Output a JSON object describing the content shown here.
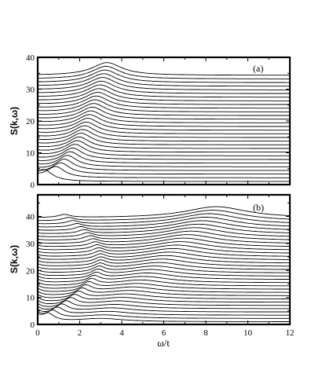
{
  "chart_data": [
    {
      "type": "line",
      "panel_label": "(a)",
      "ylabel": "S(k,ω)",
      "xlabel": "",
      "xlim": [
        0,
        12
      ],
      "ylim": [
        0,
        40
      ],
      "x_ticks": [
        "0",
        "2",
        "4",
        "6",
        "8",
        "10",
        "12"
      ],
      "show_x_tick_labels": false,
      "y_ticks": [
        "0",
        "10",
        "20",
        "30",
        "40"
      ],
      "grid": false,
      "legend": "none",
      "n_curves": 30,
      "offset_step": 1.15,
      "curve_family": {
        "description": "stacked spectra, each curve offset vertically by k index",
        "peak_position_start": 0.3,
        "peak_position_end": 3.3,
        "peak_height_start": 3.5,
        "peak_height_end": 4.0,
        "highlighted_peaks": [
          {
            "x": 3.2,
            "y": 38.0
          },
          {
            "x": 2.2,
            "y": 36.8
          }
        ]
      }
    },
    {
      "type": "line",
      "panel_label": "(b)",
      "ylabel": "S(k,ω)",
      "xlabel": "ω/t",
      "xlim": [
        0,
        12
      ],
      "ylim": [
        0,
        48
      ],
      "x_ticks": [
        "0",
        "2",
        "4",
        "6",
        "8",
        "10",
        "12"
      ],
      "show_x_tick_labels": true,
      "y_ticks": [
        "0",
        "10",
        "20",
        "30",
        "40"
      ],
      "grid": false,
      "legend": "none",
      "n_curves": 33,
      "offset_step": 1.2,
      "curve_family": {
        "description": "stacked spectra with low-energy peak near 1-3 and high-energy band peak moving to about 8.5",
        "low_peak_position_range": [
          0.5,
          3.0
        ],
        "high_peak_position_range": [
          3.0,
          8.5
        ],
        "highlighted_peaks": [
          {
            "x": 8.3,
            "y": 43.0
          },
          {
            "x": 3.0,
            "y": 40.0
          }
        ]
      }
    }
  ]
}
